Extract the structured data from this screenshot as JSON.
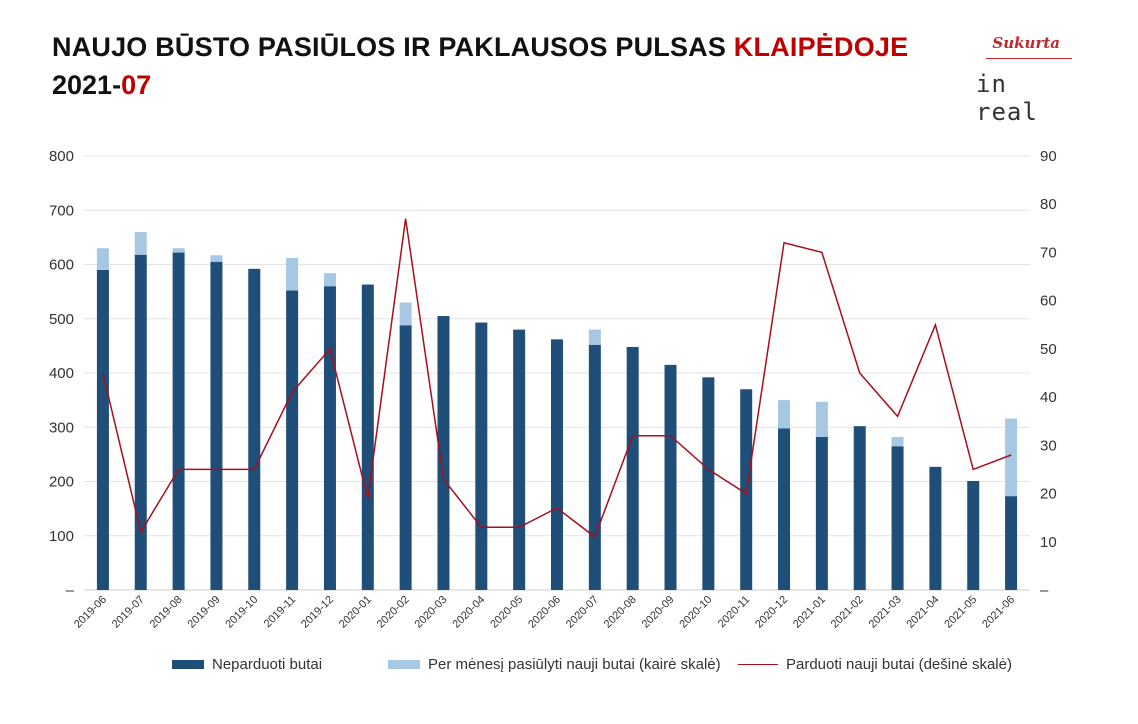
{
  "header": {
    "title_main": "NAUJO BŪSTO PASIŪLOS IR PAKLAUSOS PULSAS ",
    "title_city": "KLAIPĖDOJE",
    "subtitle_year": "2021-",
    "subtitle_month": "07"
  },
  "logo": {
    "tagline": "Sukurta",
    "brand": "in real"
  },
  "colors": {
    "unsold": "#1f4e79",
    "offered": "#a6c8e2",
    "sold_line": "#a50f1e",
    "accent": "#c00000"
  },
  "chart_data": {
    "type": "bar",
    "categories": [
      "2019-06",
      "2019-07",
      "2019-08",
      "2019-09",
      "2019-10",
      "2019-11",
      "2019-12",
      "2020-01",
      "2020-02",
      "2020-03",
      "2020-04",
      "2020-05",
      "2020-06",
      "2020-07",
      "2020-08",
      "2020-09",
      "2020-10",
      "2020-11",
      "2020-12",
      "2021-01",
      "2021-02",
      "2021-03",
      "2021-04",
      "2021-05",
      "2021-06"
    ],
    "series": [
      {
        "name": "Neparduoti butai",
        "kind": "bar",
        "axis": "left",
        "values": [
          590,
          618,
          622,
          605,
          592,
          552,
          560,
          563,
          488,
          505,
          493,
          480,
          462,
          452,
          448,
          415,
          392,
          370,
          298,
          282,
          302,
          265,
          227,
          201,
          173
        ]
      },
      {
        "name": "Per mėnesį pasiūlyti nauji butai (kairė skalė)",
        "kind": "stacked-bar",
        "axis": "left",
        "values": [
          40,
          42,
          8,
          12,
          0,
          60,
          24,
          0,
          42,
          0,
          0,
          0,
          0,
          28,
          0,
          0,
          0,
          0,
          52,
          65,
          0,
          17,
          0,
          0,
          143
        ]
      },
      {
        "name": "Parduoti nauji butai (dešinė skalė)",
        "kind": "line",
        "axis": "right",
        "values": [
          45,
          12,
          25,
          25,
          25,
          41,
          50,
          19,
          77,
          23,
          13,
          13,
          17,
          11,
          32,
          32,
          25,
          20,
          72,
          70,
          45,
          36,
          55,
          25,
          28
        ]
      }
    ],
    "y_left": {
      "min": 0,
      "max": 800,
      "ticks": [
        "–",
        "100",
        "200",
        "300",
        "400",
        "500",
        "600",
        "700",
        "800"
      ]
    },
    "y_right": {
      "min": 0,
      "max": 90,
      "ticks": [
        "–",
        "10",
        "20",
        "30",
        "40",
        "50",
        "60",
        "70",
        "80",
        "90"
      ]
    },
    "grid": true,
    "legend_position": "bottom"
  }
}
